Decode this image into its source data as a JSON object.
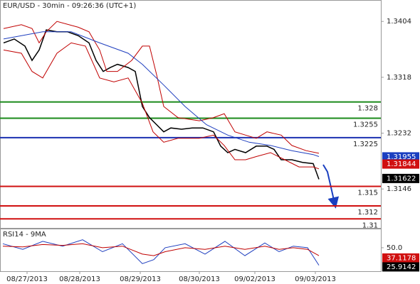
{
  "chart_data": [
    {
      "type": "line",
      "title": "EUR/USD - 30min - 09:26:36 (UTC+1)",
      "xlim": [
        0,
        133.75
      ],
      "ylim": [
        1.3085,
        1.3437
      ],
      "yticks": [
        1.3404,
        1.3318,
        1.3232,
        1.3146
      ],
      "xticks": [
        {
          "value": 9.5,
          "label": "08/27/2013"
        },
        {
          "value": 28,
          "label": "08/28/2013"
        },
        {
          "value": 49.25,
          "label": "08/29/2013"
        },
        {
          "value": 70,
          "label": "08/30/2013"
        },
        {
          "value": 89.5,
          "label": "09/02/2013"
        },
        {
          "value": 110.75,
          "label": "09/03/2013"
        }
      ],
      "series": [
        {
          "color": "#000000",
          "x": [
            1.25,
            5,
            8.75,
            11.25,
            13.75,
            16.25,
            20,
            23.75,
            27.5,
            31.25,
            33.75,
            36.25,
            38.75,
            41.25,
            45,
            47.5,
            50,
            52.5,
            55,
            57.5,
            60,
            63.75,
            67.5,
            71.25,
            75,
            77.5,
            80,
            82.5,
            86.25,
            90,
            93.75,
            96.25,
            98.75,
            102.5,
            106.25,
            110,
            112
          ],
          "values": [
            1.3371,
            1.3377,
            1.3366,
            1.3344,
            1.336,
            1.3391,
            1.3388,
            1.3388,
            1.3382,
            1.3371,
            1.3344,
            1.3327,
            1.3333,
            1.3338,
            1.3333,
            1.3327,
            1.3273,
            1.3256,
            1.3245,
            1.3234,
            1.324,
            1.3238,
            1.324,
            1.324,
            1.3234,
            1.3212,
            1.3202,
            1.3207,
            1.3202,
            1.3212,
            1.3212,
            1.3207,
            1.3191,
            1.3191,
            1.3187,
            1.3185,
            1.3161
          ]
        },
        {
          "color": "#c00000",
          "x": [
            1.25,
            7.5,
            11.25,
            13.75,
            16.25,
            20,
            27.5,
            31.25,
            35,
            37.5,
            41.25,
            46.25,
            50,
            52.5,
            55,
            57.5,
            62.5,
            70,
            75,
            78.75,
            82.5,
            86.25,
            90,
            93.75,
            98.75,
            102.5,
            107.5,
            112
          ],
          "values": [
            1.3393,
            1.3399,
            1.3393,
            1.3371,
            1.3388,
            1.3404,
            1.3395,
            1.3388,
            1.336,
            1.3327,
            1.3327,
            1.3344,
            1.3366,
            1.3366,
            1.3322,
            1.3273,
            1.3256,
            1.3251,
            1.3256,
            1.3262,
            1.3234,
            1.3229,
            1.3224,
            1.3234,
            1.3229,
            1.3213,
            1.3205,
            1.3201
          ]
        },
        {
          "color": "#c00000",
          "x": [
            1.25,
            7.5,
            11.25,
            15,
            20,
            25,
            30,
            35,
            40,
            45,
            50,
            53.75,
            57.5,
            62.5,
            70,
            75,
            78.75,
            82.5,
            86.25,
            90,
            95,
            100,
            105,
            110,
            112
          ],
          "values": [
            1.336,
            1.3355,
            1.3327,
            1.3317,
            1.3355,
            1.3371,
            1.3366,
            1.3317,
            1.3311,
            1.3317,
            1.3278,
            1.3234,
            1.3218,
            1.3224,
            1.3224,
            1.3229,
            1.3213,
            1.3191,
            1.3191,
            1.3196,
            1.3202,
            1.3191,
            1.318,
            1.318,
            1.3177
          ]
        },
        {
          "color": "#1f3fbf",
          "x": [
            1.25,
            15,
            25,
            35,
            45,
            50,
            57.5,
            65,
            72.5,
            80,
            87.5,
            95,
            102.5,
            110,
            112
          ],
          "values": [
            1.3377,
            1.3388,
            1.3388,
            1.3371,
            1.3355,
            1.3338,
            1.3306,
            1.3273,
            1.3245,
            1.3229,
            1.3218,
            1.3213,
            1.3205,
            1.3199,
            1.3196
          ]
        }
      ],
      "levels": [
        {
          "value": 1.328,
          "color": "#1a8a1a"
        },
        {
          "value": 1.3255,
          "color": "#1a8a1a"
        },
        {
          "value": 1.3225,
          "color": "#1a2fb0"
        },
        {
          "value": 1.315,
          "color": "#d01010"
        },
        {
          "value": 1.312,
          "color": "#d01010"
        },
        {
          "value": 1.31,
          "color": "#d01010"
        }
      ],
      "price_tags": [
        {
          "value": 1.31955,
          "color": "#1a3fc0"
        },
        {
          "value": 1.31844,
          "color": "#d01010"
        },
        {
          "value": 1.31622,
          "color": "#000000"
        }
      ]
    },
    {
      "type": "line",
      "title": "RSI14 - 9MA",
      "xlim": [
        0,
        133.75
      ],
      "ylim": [
        20.5,
        74
      ],
      "yticks": [
        {
          "value": 50,
          "label": "50.0"
        }
      ],
      "series": [
        {
          "color": "#1f3fbf",
          "x": [
            1,
            8,
            15,
            22,
            29,
            36,
            43,
            50,
            54,
            58,
            65,
            72,
            79,
            86,
            93,
            98,
            103,
            108,
            112
          ],
          "values": [
            55,
            48,
            58,
            52,
            60,
            45,
            55,
            30,
            35,
            50,
            55,
            42,
            58,
            40,
            56,
            45,
            52,
            50,
            28
          ]
        },
        {
          "color": "#c00000",
          "x": [
            1,
            8,
            15,
            22,
            29,
            36,
            43,
            50,
            54,
            58,
            65,
            72,
            79,
            86,
            93,
            98,
            103,
            108,
            112
          ],
          "values": [
            52,
            51,
            54,
            53,
            55,
            50,
            52,
            42,
            40,
            45,
            50,
            48,
            52,
            48,
            52,
            48,
            50,
            48,
            40
          ]
        }
      ],
      "value_tags": [
        {
          "value": 37.1178,
          "color": "#d01010"
        },
        {
          "value": 25.9142,
          "color": "#000000"
        }
      ]
    }
  ]
}
